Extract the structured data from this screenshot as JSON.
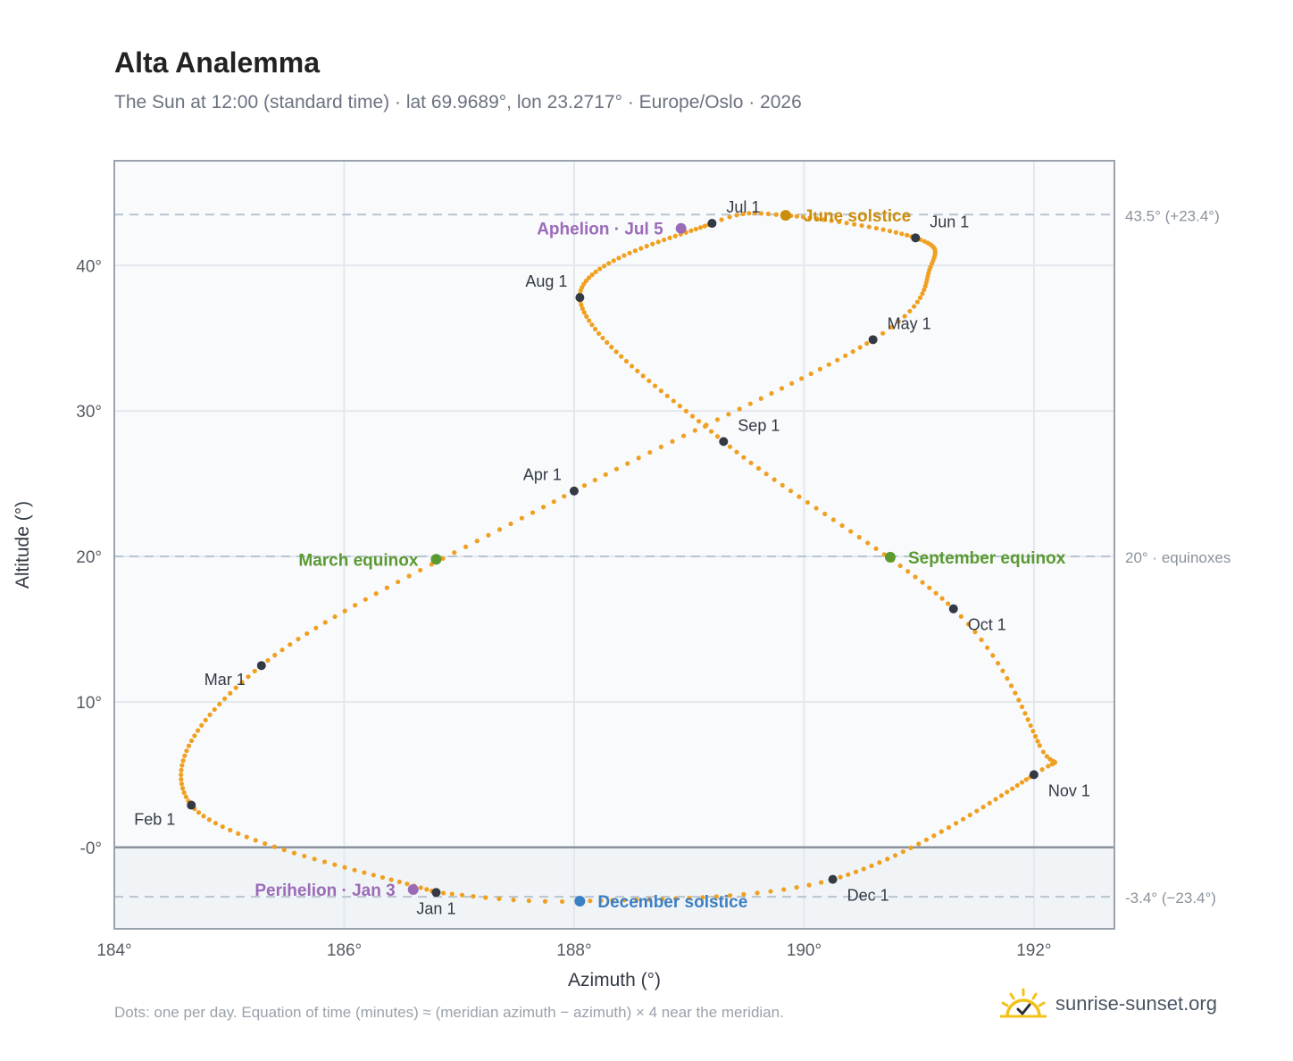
{
  "header": {
    "title": "Alta Analemma",
    "subtitle": "The Sun at 12:00 (standard time) · lat 69.9689°, lon 23.2717° · Europe/Oslo · 2026"
  },
  "footer": {
    "note": "Dots: one per day. Equation of time (minutes) ≈ (meridian azimuth − azimuth) × 4 near the meridian.",
    "brand": "sunrise-sunset.org"
  },
  "colors": {
    "path": "#f0a020",
    "month_marker": "#333a44",
    "solstice_june": "#cc8e0a",
    "solstice_december": "#3b7fc4",
    "equinox": "#5a9a30",
    "apsis": "#9b6bb8",
    "below_horizon": "#f1f4f7",
    "plot_bg": "#f8fafc"
  },
  "chart_data": {
    "type": "scatter",
    "xlabel": "Azimuth (°)",
    "ylabel": "Altitude (°)",
    "xlim": [
      184,
      192.7
    ],
    "ylim": [
      -5.6,
      47.2
    ],
    "x_ticks": [
      "184°",
      "186°",
      "188°",
      "190°",
      "192°"
    ],
    "y_ticks": [
      "-0°",
      "10°",
      "20°",
      "30°",
      "40°"
    ],
    "grid": true,
    "horizon_altitude": 0,
    "reference_lines": [
      {
        "altitude": 43.5,
        "label": "43.5° (+23.4°)"
      },
      {
        "altitude": 20,
        "label": "20° · equinoxes"
      },
      {
        "altitude": -3.4,
        "label": "-3.4° (−23.4°)"
      }
    ],
    "daily_path": {
      "points_per_day": 1,
      "days": 365,
      "keypoints": [
        {
          "day": 0,
          "az": 186.8,
          "alt": -3.1
        },
        {
          "day": 31,
          "az": 184.67,
          "alt": 2.9
        },
        {
          "day": 59,
          "az": 185.28,
          "alt": 12.5
        },
        {
          "day": 90,
          "az": 188.0,
          "alt": 24.5
        },
        {
          "day": 120,
          "az": 190.6,
          "alt": 34.9
        },
        {
          "day": 137,
          "az": 191.1,
          "alt": 39.9
        },
        {
          "day": 151,
          "az": 190.97,
          "alt": 41.9
        },
        {
          "day": 171,
          "az": 189.84,
          "alt": 43.45
        },
        {
          "day": 181,
          "az": 189.2,
          "alt": 42.9
        },
        {
          "day": 212,
          "az": 188.05,
          "alt": 37.8
        },
        {
          "day": 243,
          "az": 189.3,
          "alt": 27.9
        },
        {
          "day": 273,
          "az": 191.3,
          "alt": 16.4
        },
        {
          "day": 293,
          "az": 192.05,
          "alt": 7.0
        },
        {
          "day": 304,
          "az": 192.0,
          "alt": 5.0
        },
        {
          "day": 334,
          "az": 190.25,
          "alt": -2.2
        },
        {
          "day": 354,
          "az": 188.05,
          "alt": -3.7
        },
        {
          "day": 365,
          "az": 186.8,
          "alt": -3.1
        }
      ]
    },
    "month_markers": [
      {
        "label": "Jan 1",
        "az": 186.8,
        "alt": -3.1,
        "pos": "below"
      },
      {
        "label": "Feb 1",
        "az": 184.67,
        "alt": 2.9,
        "pos": "below-left"
      },
      {
        "label": "Mar 1",
        "az": 185.28,
        "alt": 12.5,
        "pos": "below-left"
      },
      {
        "label": "Apr 1",
        "az": 188.0,
        "alt": 24.5,
        "pos": "above-left"
      },
      {
        "label": "May 1",
        "az": 190.6,
        "alt": 34.9,
        "pos": "above-right"
      },
      {
        "label": "Jun 1",
        "az": 190.97,
        "alt": 41.9,
        "pos": "above-right"
      },
      {
        "label": "Jul 1",
        "az": 189.2,
        "alt": 42.9,
        "pos": "above-right"
      },
      {
        "label": "Aug 1",
        "az": 188.05,
        "alt": 37.8,
        "pos": "above-left"
      },
      {
        "label": "Sep 1",
        "az": 189.3,
        "alt": 27.9,
        "pos": "above-right"
      },
      {
        "label": "Oct 1",
        "az": 191.3,
        "alt": 16.4,
        "pos": "below-right"
      },
      {
        "label": "Nov 1",
        "az": 192.0,
        "alt": 5.0,
        "pos": "below-right"
      },
      {
        "label": "Dec 1",
        "az": 190.25,
        "alt": -2.2,
        "pos": "below-right"
      }
    ],
    "events": [
      {
        "label": "June solstice",
        "az": 189.84,
        "alt": 43.45,
        "color_key": "solstice_june",
        "pos": "right"
      },
      {
        "label": "December solstice",
        "az": 188.05,
        "alt": -3.7,
        "color_key": "solstice_december",
        "pos": "right"
      },
      {
        "label": "March equinox",
        "az": 186.8,
        "alt": 19.8,
        "color_key": "equinox",
        "pos": "left"
      },
      {
        "label": "September equinox",
        "az": 190.75,
        "alt": 19.95,
        "color_key": "equinox",
        "pos": "right"
      },
      {
        "label": "Aphelion · Jul 5",
        "az": 188.93,
        "alt": 42.55,
        "color_key": "apsis",
        "pos": "left"
      },
      {
        "label": "Perihelion · Jan 3",
        "az": 186.6,
        "alt": -2.9,
        "color_key": "apsis",
        "pos": "left"
      }
    ]
  }
}
